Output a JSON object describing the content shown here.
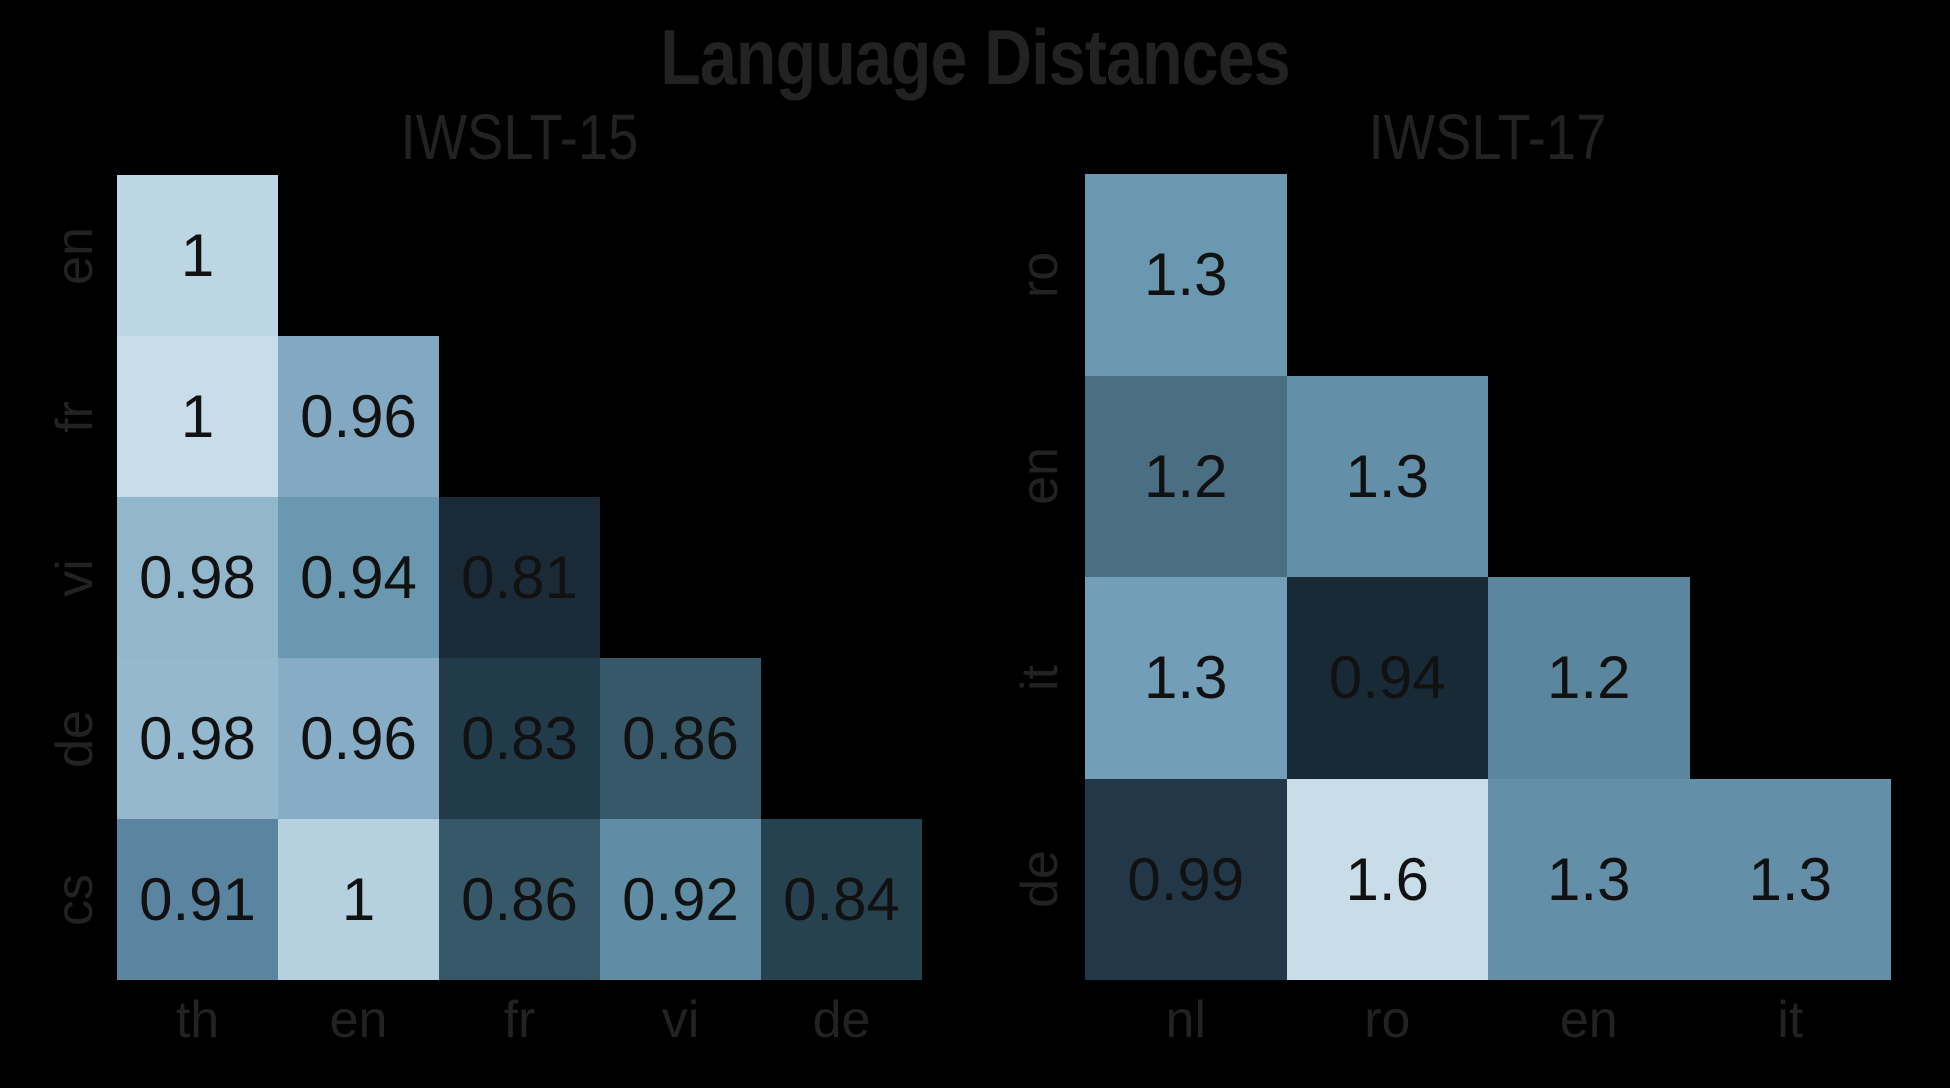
{
  "chart_data": [
    {
      "type": "heatmap",
      "title": "IWSLT-15",
      "suptitle": "Language Distances",
      "x_labels": [
        "th",
        "en",
        "fr",
        "vi",
        "de"
      ],
      "y_labels": [
        "en",
        "fr",
        "vi",
        "de",
        "cs"
      ],
      "values": [
        [
          1,
          null,
          null,
          null,
          null
        ],
        [
          1,
          0.96,
          null,
          null,
          null
        ],
        [
          0.98,
          0.94,
          0.81,
          null,
          null
        ],
        [
          0.98,
          0.96,
          0.83,
          0.86,
          null
        ],
        [
          0.91,
          1,
          0.86,
          0.92,
          0.84
        ]
      ],
      "labels": [
        [
          "1",
          null,
          null,
          null,
          null
        ],
        [
          "1",
          "0.96",
          null,
          null,
          null
        ],
        [
          "0.98",
          "0.94",
          "0.81",
          null,
          null
        ],
        [
          "0.98",
          "0.96",
          "0.83",
          "0.86",
          null
        ],
        [
          "0.91",
          "1",
          "0.86",
          "0.92",
          "0.84"
        ]
      ],
      "colors": [
        [
          "#bdd6e4",
          null,
          null,
          null,
          null
        ],
        [
          "#c8dde9",
          "#83a9c2",
          null,
          null,
          null
        ],
        [
          "#92b7cc",
          "#6a98b0",
          "#1a2b37",
          null,
          null
        ],
        [
          "#94b9cf",
          "#86adc5",
          "#223b4b",
          "#375869",
          null
        ],
        [
          "#5a84a0",
          "#b5d0df",
          "#375869",
          "#608da6",
          "#27424f"
        ]
      ],
      "colormap": "blues-dark",
      "grid": false
    },
    {
      "type": "heatmap",
      "title": "IWSLT-17",
      "x_labels": [
        "nl",
        "ro",
        "en",
        "it"
      ],
      "y_labels": [
        "ro",
        "en",
        "it",
        "de"
      ],
      "values": [
        [
          1.3,
          null,
          null,
          null
        ],
        [
          1.2,
          1.3,
          null,
          null
        ],
        [
          1.3,
          0.94,
          1.2,
          null
        ],
        [
          0.99,
          1.6,
          1.3,
          1.3
        ]
      ],
      "labels": [
        [
          "1.3",
          null,
          null,
          null
        ],
        [
          "1.2",
          "1.3",
          null,
          null
        ],
        [
          "1.3",
          "0.94",
          "1.2",
          null
        ],
        [
          "0.99",
          "1.6",
          "1.3",
          "1.3"
        ]
      ],
      "colors": [
        [
          "#6998b0",
          null,
          null,
          null
        ],
        [
          "#4a6e82",
          "#6390a8",
          null,
          null
        ],
        [
          "#729fb7",
          "#182a36",
          "#5a879e",
          null
        ],
        [
          "#223848",
          "#c9dde9",
          "#6390a8",
          "#6390a8"
        ]
      ],
      "colormap": "blues-dark",
      "grid": false
    }
  ],
  "figure": {
    "title": "Language Distances",
    "subplots": [
      "IWSLT-15",
      "IWSLT-17"
    ]
  }
}
